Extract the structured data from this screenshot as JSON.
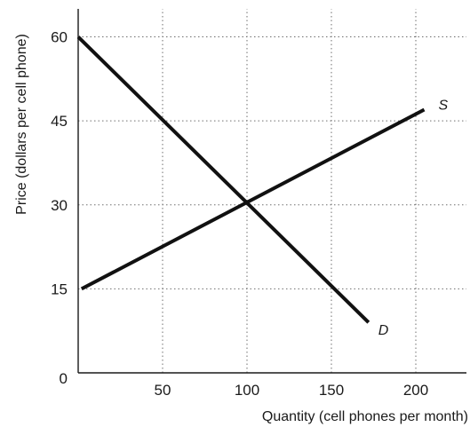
{
  "chart_data": {
    "type": "line",
    "xlabel": "Quantity (cell phones per month)",
    "ylabel": "Price (dollars per cell phone)",
    "xlim": [
      0,
      230
    ],
    "ylim": [
      0,
      65
    ],
    "xticks": [
      50,
      100,
      150,
      200
    ],
    "yticks": [
      15,
      30,
      45,
      60
    ],
    "x_tick_labels": [
      "50",
      "100",
      "150",
      "200"
    ],
    "y_tick_labels": [
      "15",
      "30",
      "45",
      "60"
    ],
    "origin_label": "0",
    "grid": true,
    "series": [
      {
        "name": "D",
        "color": "#111111",
        "points": [
          {
            "x": 0,
            "y": 60
          },
          {
            "x": 172,
            "y": 9
          }
        ]
      },
      {
        "name": "S",
        "color": "#111111",
        "points": [
          {
            "x": 2,
            "y": 15
          },
          {
            "x": 205,
            "y": 47
          }
        ]
      }
    ]
  }
}
